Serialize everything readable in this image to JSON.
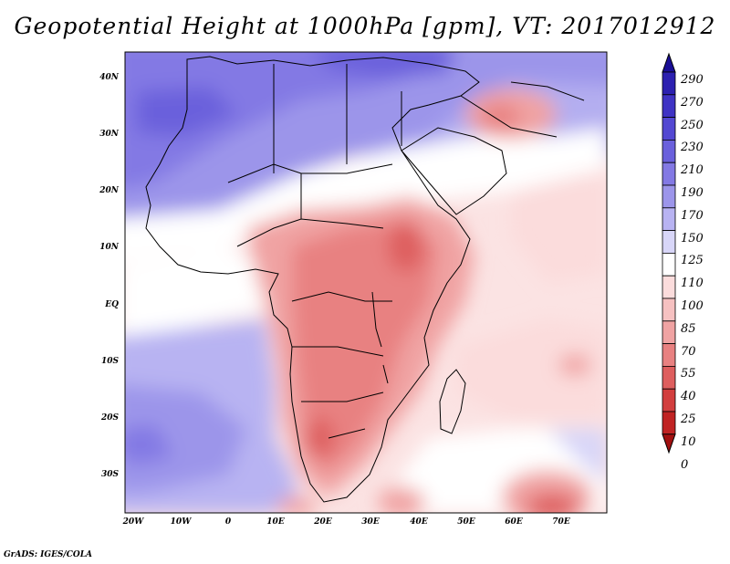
{
  "title": "Geopotential Height at 1000hPa [gpm], VT: 2017012912",
  "credit": "GrADS: IGES/COLA",
  "lat_labels": [
    "40N",
    "30N",
    "20N",
    "10N",
    "EQ",
    "10S",
    "20S",
    "30S"
  ],
  "lon_labels": [
    "20W",
    "10W",
    "0",
    "10E",
    "20E",
    "30E",
    "40E",
    "50E",
    "60E",
    "70E"
  ],
  "colorbar": {
    "labels": [
      "290",
      "270",
      "250",
      "230",
      "210",
      "190",
      "170",
      "150",
      "125",
      "110",
      "100",
      "85",
      "70",
      "55",
      "40",
      "25",
      "10",
      "0"
    ],
    "colors": [
      "#1a0e96",
      "#2c20b0",
      "#3f33c4",
      "#5348d2",
      "#6a60dc",
      "#8379e4",
      "#9c95ea",
      "#b8b3f2",
      "#d8d6f8",
      "#ffffff",
      "#fbdcdc",
      "#f6c1c1",
      "#f0a3a3",
      "#e88181",
      "#de5e5e",
      "#d23e3e",
      "#c02323",
      "#a21010"
    ]
  },
  "colors": {
    "ocean_mid": "#ffffff",
    "high_blue": "#6a60dc",
    "low_red": "#de5e5e",
    "coastline": "#000000"
  }
}
